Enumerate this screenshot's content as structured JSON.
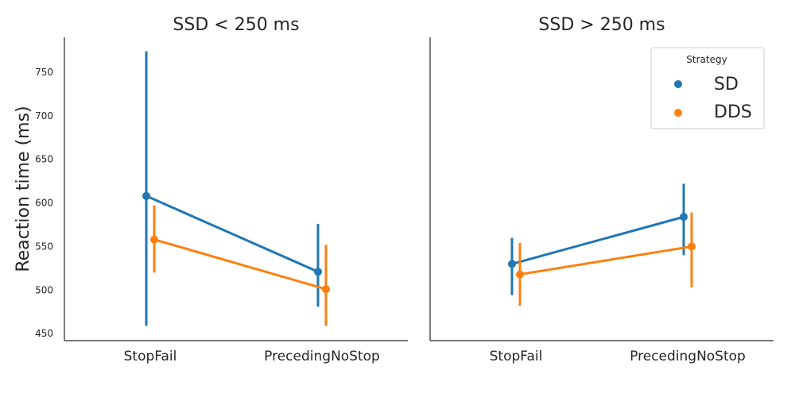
{
  "figure": {
    "ylabel": "Reaction time (ms)"
  },
  "chart_data": [
    {
      "type": "line",
      "title": "SSD < 250 ms",
      "xlabel": "",
      "ylabel": "Reaction time (ms)",
      "categories": [
        "StopFail",
        "PrecedingNoStop"
      ],
      "ylim": [
        442,
        790
      ],
      "yticks": [
        450,
        500,
        550,
        600,
        650,
        700,
        750
      ],
      "series": [
        {
          "name": "SD",
          "color": "#1f77b4",
          "values": [
            608,
            521
          ],
          "ci_low": [
            459,
            481
          ],
          "ci_high": [
            774,
            576
          ]
        },
        {
          "name": "DDS",
          "color": "#ff7f0e",
          "values": [
            558,
            501
          ],
          "ci_low": [
            520,
            459
          ],
          "ci_high": [
            597,
            552
          ]
        }
      ]
    },
    {
      "type": "line",
      "title": "SSD > 250 ms",
      "xlabel": "",
      "categories": [
        "StopFail",
        "PrecedingNoStop"
      ],
      "ylim": [
        442,
        790
      ],
      "series": [
        {
          "name": "SD",
          "color": "#1f77b4",
          "values": [
            530,
            584
          ],
          "ci_low": [
            494,
            540
          ],
          "ci_high": [
            560,
            622
          ]
        },
        {
          "name": "DDS",
          "color": "#ff7f0e",
          "values": [
            518,
            550
          ],
          "ci_low": [
            482,
            503
          ],
          "ci_high": [
            554,
            589
          ]
        }
      ]
    }
  ],
  "legend": {
    "title": "Strategy",
    "placement": "top-right",
    "items": [
      {
        "label": "SD",
        "color": "#1f77b4"
      },
      {
        "label": "DDS",
        "color": "#ff7f0e"
      }
    ]
  }
}
